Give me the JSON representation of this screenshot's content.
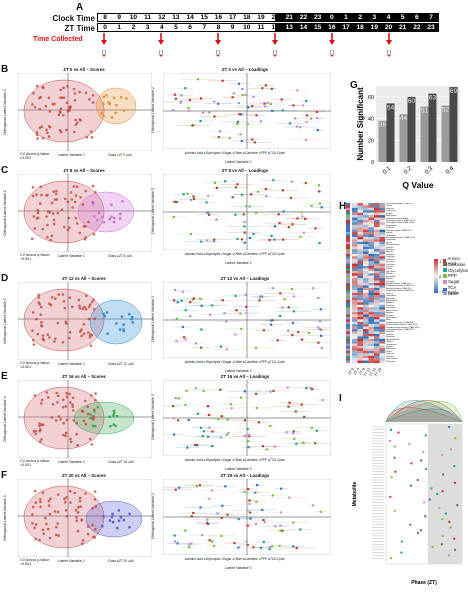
{
  "panel_labels": {
    "A": "A",
    "B": "B",
    "C": "C",
    "D": "D",
    "E": "E",
    "F": "F",
    "G": "G",
    "H": "H",
    "I": "I"
  },
  "timeline": {
    "clock_label": "Clock Time",
    "zt_label": "ZT Time",
    "collected_label": "Time Collected",
    "clock_hours": [
      "8",
      "9",
      "10",
      "11",
      "12",
      "13",
      "14",
      "15",
      "16",
      "17",
      "18",
      "19",
      "20",
      "21",
      "22",
      "23",
      "0",
      "1",
      "2",
      "3",
      "4",
      "5",
      "6",
      "7"
    ],
    "zt_hours": [
      "0",
      "1",
      "2",
      "3",
      "4",
      "5",
      "6",
      "7",
      "8",
      "9",
      "10",
      "11",
      "12",
      "13",
      "14",
      "15",
      "16",
      "17",
      "18",
      "19",
      "20",
      "21",
      "22",
      "23"
    ],
    "collected_indices": [
      0,
      4,
      8,
      12,
      16,
      20
    ]
  },
  "pca_rows": [
    {
      "label": "B",
      "scores_title": "ZT 0 vs All – Scores",
      "loadings_title": "ZT 0 vs All – Loadings",
      "legend_zt": "ZT 0",
      "color": "#e8913a"
    },
    {
      "label": "C",
      "scores_title": "ZT 8 vs All – Scores",
      "loadings_title": "ZT 8 vs All – Loadings",
      "legend_zt": "ZT 8",
      "color": "#cf6fd6"
    },
    {
      "label": "D",
      "scores_title": "ZT 12 vs All – Scores",
      "loadings_title": "ZT 12 vs All – Loadings",
      "legend_zt": "ZT 12",
      "color": "#2e8fd6"
    },
    {
      "label": "E",
      "scores_title": "ZT 16 vs All – Scores",
      "loadings_title": "ZT 16 vs All – Loadings",
      "legend_zt": "ZT 16",
      "color": "#3caa55"
    },
    {
      "label": "F",
      "scores_title": "ZT 20 vs All – Scores",
      "loadings_title": "ZT 20 vs All – Loadings",
      "legend_zt": "ZT 20",
      "color": "#5a5fd6"
    }
  ],
  "scores_axes": {
    "x": "Latent Variable 1",
    "y": "Orthogonal Latent Variable 1",
    "pval": "CV Anova p-Value:\n<0.001",
    "class_label": "Class",
    "all_label": "All"
  },
  "loadings_axes": {
    "x": "Latent Variable 1",
    "y": "Orthogonal Latent Variable 2"
  },
  "loadings_legend": [
    "Amino Acid",
    "Glycolysis",
    "Sugar",
    "Other",
    "Carnitine",
    "PPP",
    "TCA Cycle"
  ],
  "chart_data": {
    "type": "bar",
    "categories": [
      "0.1",
      "0.2",
      "0.3",
      "0.4"
    ],
    "series": [
      {
        "values": [
          38,
          44,
          51,
          52
        ]
      },
      {
        "values": [
          54,
          60,
          63,
          69
        ]
      }
    ],
    "xlabel": "Q Value",
    "ylabel": "Number Significant",
    "ylim": [
      0,
      70
    ],
    "yticks": [
      "0",
      "20",
      "40",
      "60"
    ]
  },
  "heatmap": {
    "columns": [
      "ZT 0",
      "ZT 4",
      "ZT 8",
      "ZT 12",
      "ZT 16",
      "ZT 20"
    ],
    "row_labels": [
      "Octanoylcarnitine (CAR 8:0)",
      "Valine",
      "Leucine",
      "Isoleucine",
      "Proline",
      "Methionine",
      "Hexadecanoylcarnitine",
      "Palmitoylcarnitine (CAR 16:0)",
      "Stearoylcarnitine (CAR 18:0)",
      "Tryptophan",
      "Tyrosine",
      "Oleoylcarnitine (CAR 18:1)",
      "Serine",
      "Glutamine",
      "Decanoylcarnitine (CAR 10:0)",
      "Threonine",
      "Lysine",
      "Phenylalanine",
      "Glycine",
      "Histidine",
      "Alanine",
      "Citrulline",
      "Ornithine",
      "Glucose",
      "Fructose",
      "Pyruvate",
      "Lactate",
      "Citrate",
      "Succinate",
      "Malate",
      "Fumarate",
      "Ribose",
      "Carnitine",
      "Acetylcarnitine (CAR 2:0)",
      "Propionylcarnitine (CAR 3:0)",
      "Butyrylcarnitine (CAR 4:0)",
      "Hexanoylcarnitine (CAR 6:0)",
      "Taurine",
      "Glutamate",
      "Aspartate",
      "Asparagine",
      "Arginine",
      "Creatine",
      "Creatinine",
      "Hypotaurine",
      "Betaine",
      "Choline",
      "Spermidine",
      "Urea",
      "Isovalerylcarnitine (CAR 5:0)",
      "Dodecanoylcarnitine (CAR 12:0)",
      "Tetradecanoylcarnitine (CAR 14:0)",
      "Linoleoylcarnitine (CAR 18:2)",
      "Glycerol",
      "Inositol",
      "Xanthine",
      "Hypoxanthine",
      "Uridine",
      "Guanosine",
      "Inosine",
      "Adenosine",
      "Uracil",
      "Thymine",
      "Cytidine",
      "Kynurenine",
      "Serotonin"
    ],
    "scale_ticks": [
      "1",
      "0",
      "−1"
    ],
    "legend": [
      {
        "name": "Amino Acid",
        "color": "#c0392b"
      },
      {
        "name": "Carnitine",
        "color": "#8e5a3c"
      },
      {
        "name": "Glycolysis",
        "color": "#2a9d8f"
      },
      {
        "name": "PPP",
        "color": "#7bc043"
      },
      {
        "name": "Sugar",
        "color": "#d68ad6"
      },
      {
        "name": "TCA Cycle",
        "color": "#3a6fc4"
      },
      {
        "name": "Other",
        "color": "#9a9ad6"
      }
    ]
  },
  "panel_i": {
    "ylabel": "Metabolite",
    "xlabel": "Phase (ZT)"
  },
  "colors": {
    "ellipse_all": "#d97b86",
    "red": "#d11",
    "heat_low": "#2b6cb0",
    "heat_mid": "#f5f5f5",
    "heat_high": "#c53030"
  }
}
